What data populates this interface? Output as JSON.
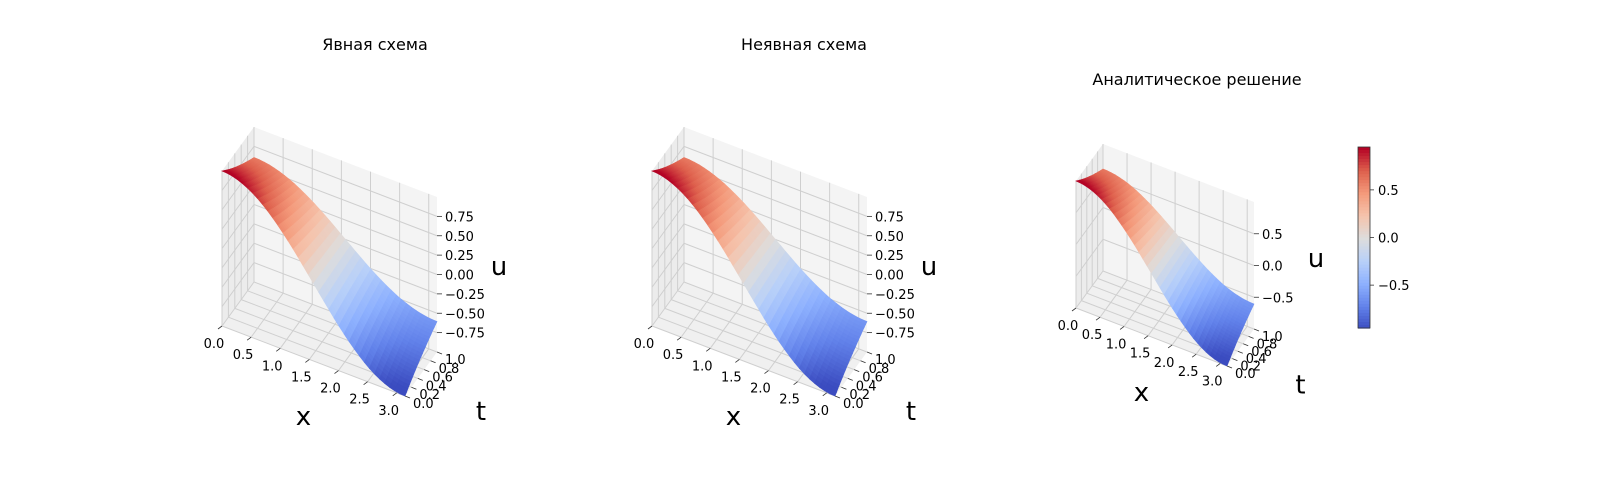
{
  "chart_data": [
    {
      "type": "surface",
      "title": "Явная схема",
      "xlabel": "x",
      "ylabel": "t",
      "zlabel": "u",
      "x_ticks": [
        "0.0",
        "0.5",
        "1.0",
        "1.5",
        "2.0",
        "2.5",
        "3.0"
      ],
      "y_ticks": [
        "0.0",
        "0.2",
        "0.4",
        "0.6",
        "0.8",
        "1.0"
      ],
      "z_ticks": [
        "0.75",
        "0.50",
        "0.25",
        "0.00",
        "−0.25",
        "−0.50",
        "−0.75"
      ],
      "xlim": [
        0,
        3.14159
      ],
      "ylim": [
        0,
        1
      ],
      "zlim": [
        -1,
        1
      ],
      "function": "u(x,t) = cos(x) * exp(-0.5 t)",
      "colormap": "coolwarm",
      "grid": true
    },
    {
      "type": "surface",
      "title": "Неявная схема",
      "xlabel": "x",
      "ylabel": "t",
      "zlabel": "u",
      "x_ticks": [
        "0.0",
        "0.5",
        "1.0",
        "1.5",
        "2.0",
        "2.5",
        "3.0"
      ],
      "y_ticks": [
        "0.0",
        "0.2",
        "0.4",
        "0.6",
        "0.8",
        "1.0"
      ],
      "z_ticks": [
        "0.75",
        "0.50",
        "0.25",
        "0.00",
        "−0.25",
        "−0.50",
        "−0.75"
      ],
      "xlim": [
        0,
        3.14159
      ],
      "ylim": [
        0,
        1
      ],
      "zlim": [
        -1,
        1
      ],
      "function": "u(x,t) = cos(x) * exp(-0.5 t)",
      "colormap": "coolwarm",
      "grid": true
    },
    {
      "type": "surface",
      "title": "Аналитическое решение",
      "xlabel": "x",
      "ylabel": "t",
      "zlabel": "u",
      "x_ticks": [
        "0.0",
        "0.5",
        "1.0",
        "1.5",
        "2.0",
        "2.5",
        "3.0"
      ],
      "y_ticks": [
        "0.0",
        "0.2",
        "0.4",
        "0.6",
        "0.8",
        "1.0"
      ],
      "z_ticks": [
        "0.5",
        "0.0",
        "−0.5"
      ],
      "xlim": [
        0,
        3.14159
      ],
      "ylim": [
        0,
        1
      ],
      "zlim": [
        -1,
        1
      ],
      "function": "u(x,t) = cos(x) * exp(-0.5 t)",
      "colormap": "coolwarm",
      "grid": true,
      "colorbar": {
        "ticks": [
          "0.5",
          "0.0",
          "−0.5"
        ],
        "range": [
          -0.95,
          0.95
        ]
      }
    }
  ]
}
